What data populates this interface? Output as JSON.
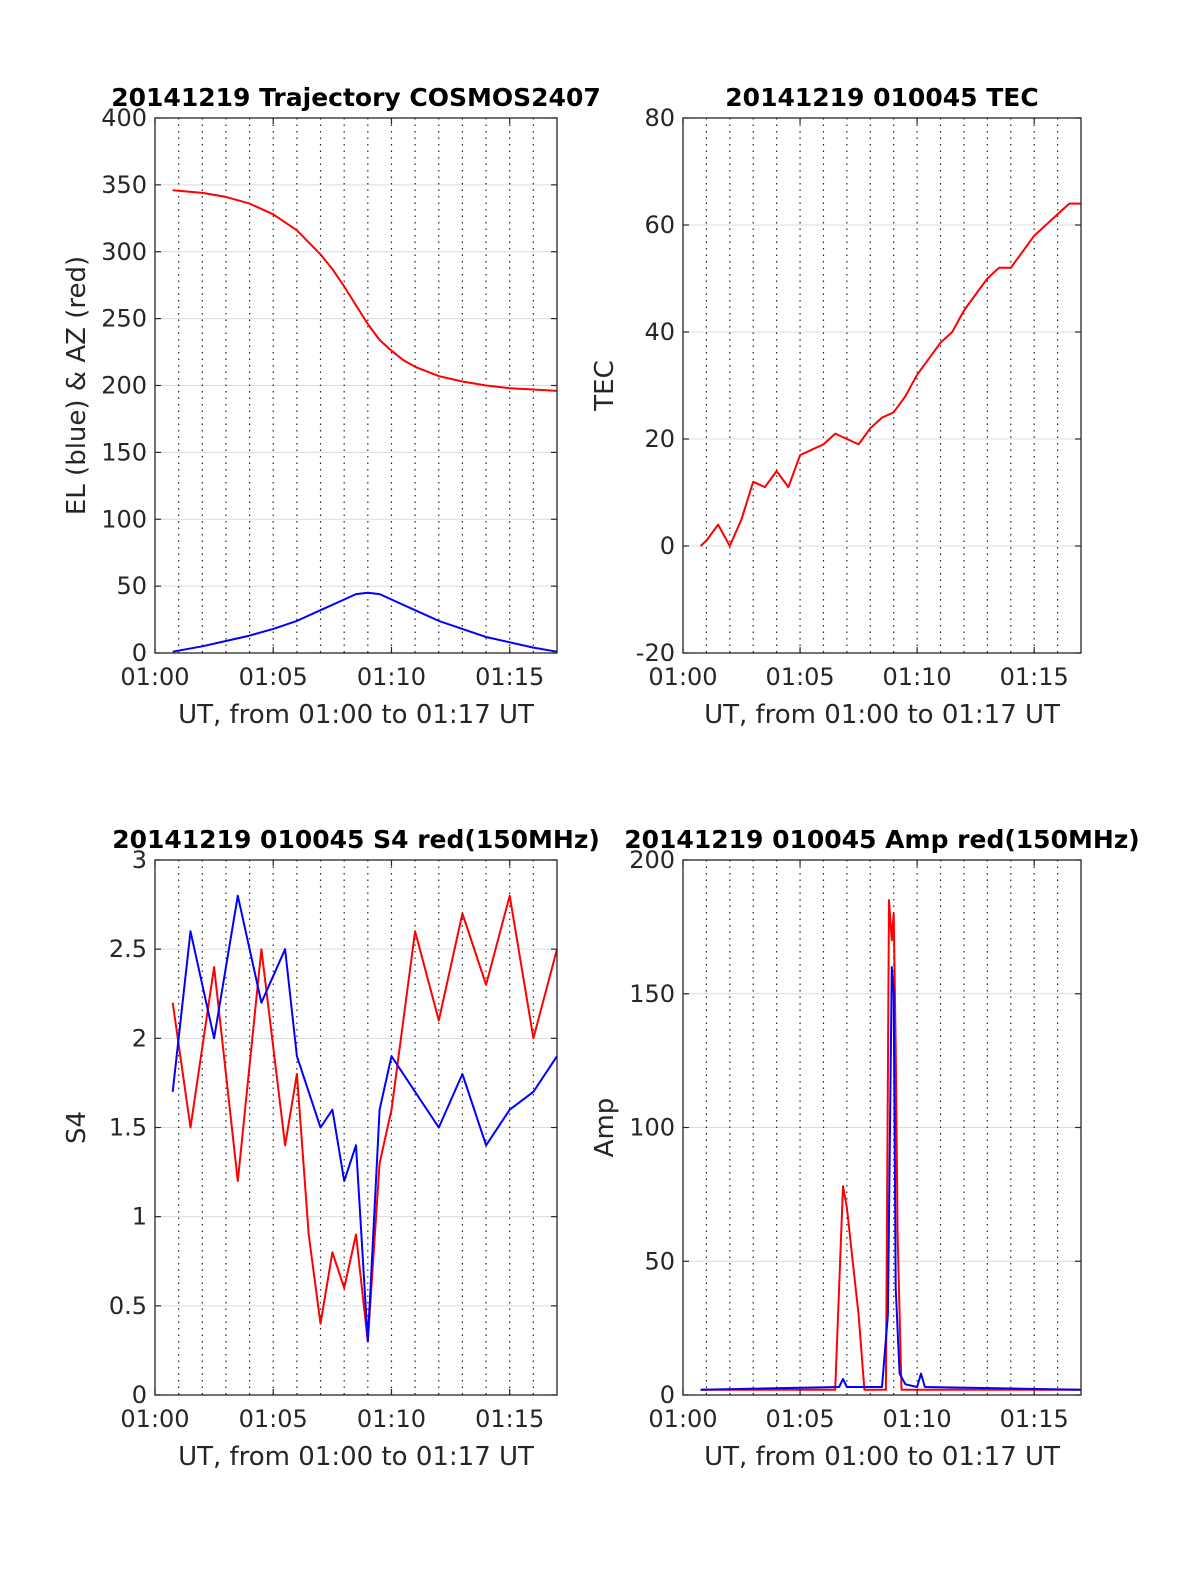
{
  "chart_data": [
    {
      "type": "line",
      "title": "20141219 Trajectory COSMOS2407",
      "xlabel": "UT, from 01:00 to 01:17 UT",
      "ylabel": "EL (blue) & AZ (red)",
      "xlim": [
        "01:00",
        "01:17"
      ],
      "ylim": [
        0,
        400
      ],
      "xticks": [
        "01:00",
        "01:05",
        "01:10",
        "01:15"
      ],
      "yticks": [
        "0",
        "50",
        "100",
        "150",
        "200",
        "250",
        "300",
        "350",
        "400"
      ],
      "grid": true,
      "series": [
        {
          "color": "#ff0000",
          "x": [
            "01:00:45",
            "01:02:00",
            "01:03:00",
            "01:04:00",
            "01:05:00",
            "01:06:00",
            "01:07:00",
            "01:07:30",
            "01:08:00",
            "01:08:30",
            "01:09:00",
            "01:09:30",
            "01:10:00",
            "01:10:30",
            "01:11:00",
            "01:12:00",
            "01:13:00",
            "01:14:00",
            "01:15:00",
            "01:16:00",
            "01:17:00"
          ],
          "values": [
            346,
            344,
            341,
            336,
            328,
            316,
            298,
            287,
            274,
            260,
            246,
            234,
            226,
            219,
            214,
            207,
            203,
            200,
            198,
            197,
            196
          ]
        },
        {
          "color": "#0000ff",
          "x": [
            "01:00:45",
            "01:02:00",
            "01:03:00",
            "01:04:00",
            "01:05:00",
            "01:06:00",
            "01:07:00",
            "01:08:00",
            "01:08:30",
            "01:09:00",
            "01:09:30",
            "01:10:00",
            "01:11:00",
            "01:12:00",
            "01:13:00",
            "01:14:00",
            "01:15:00",
            "01:16:00",
            "01:17:00"
          ],
          "values": [
            1,
            5,
            9,
            13,
            18,
            24,
            32,
            40,
            44,
            45,
            44,
            40,
            32,
            24,
            18,
            12,
            8,
            4,
            1
          ]
        }
      ]
    },
    {
      "type": "line",
      "title": "20141219 010045 TEC",
      "xlabel": "UT, from 01:00 to 01:17 UT",
      "ylabel": "TEC",
      "xlim": [
        "01:00",
        "01:17"
      ],
      "ylim": [
        -20,
        80
      ],
      "xticks": [
        "01:00",
        "01:05",
        "01:10",
        "01:15"
      ],
      "yticks": [
        "-20",
        "0",
        "20",
        "40",
        "60",
        "80"
      ],
      "grid": true,
      "series": [
        {
          "color": "#ff0000",
          "x": [
            "01:00:45",
            "01:01:00",
            "01:01:30",
            "01:02:00",
            "01:02:30",
            "01:03:00",
            "01:03:30",
            "01:04:00",
            "01:04:30",
            "01:05:00",
            "01:05:30",
            "01:06:00",
            "01:06:30",
            "01:07:00",
            "01:07:30",
            "01:08:00",
            "01:08:30",
            "01:09:00",
            "01:09:30",
            "01:10:00",
            "01:10:30",
            "01:11:00",
            "01:11:30",
            "01:12:00",
            "01:12:30",
            "01:13:00",
            "01:13:30",
            "01:14:00",
            "01:14:30",
            "01:15:00",
            "01:15:30",
            "01:16:00",
            "01:16:30",
            "01:17:00"
          ],
          "values": [
            0,
            1,
            4,
            0,
            5,
            12,
            11,
            14,
            11,
            17,
            18,
            19,
            21,
            20,
            19,
            22,
            24,
            25,
            28,
            32,
            35,
            38,
            40,
            44,
            47,
            50,
            52,
            52,
            55,
            58,
            60,
            62,
            64,
            64
          ]
        }
      ]
    },
    {
      "type": "line",
      "title": "20141219 010045 S4 red(150MHz)",
      "xlabel": "UT, from 01:00 to 01:17 UT",
      "ylabel": "S4",
      "xlim": [
        "01:00",
        "01:17"
      ],
      "ylim": [
        0,
        3
      ],
      "xticks": [
        "01:00",
        "01:05",
        "01:10",
        "01:15"
      ],
      "yticks": [
        "0",
        "0.5",
        "1",
        "1.5",
        "2",
        "2.5",
        "3"
      ],
      "grid": true,
      "series": [
        {
          "color": "#ff0000",
          "x": [
            "01:00:45",
            "01:01:30",
            "01:02:30",
            "01:03:30",
            "01:04:30",
            "01:05:30",
            "01:06:00",
            "01:06:30",
            "01:07:00",
            "01:07:30",
            "01:08:00",
            "01:08:30",
            "01:09:00",
            "01:09:30",
            "01:10:00",
            "01:11:00",
            "01:12:00",
            "01:13:00",
            "01:14:00",
            "01:15:00",
            "01:16:00",
            "01:17:00"
          ],
          "values": [
            2.2,
            1.5,
            2.4,
            1.2,
            2.5,
            1.4,
            1.8,
            0.9,
            0.4,
            0.8,
            0.6,
            0.9,
            0.3,
            1.3,
            1.6,
            2.6,
            2.1,
            2.7,
            2.3,
            2.8,
            2.0,
            2.5
          ]
        },
        {
          "color": "#0000ff",
          "x": [
            "01:00:45",
            "01:01:30",
            "01:02:30",
            "01:03:30",
            "01:04:30",
            "01:05:30",
            "01:06:00",
            "01:06:30",
            "01:07:00",
            "01:07:30",
            "01:08:00",
            "01:08:30",
            "01:09:00",
            "01:09:30",
            "01:10:00",
            "01:11:00",
            "01:12:00",
            "01:13:00",
            "01:14:00",
            "01:15:00",
            "01:16:00",
            "01:17:00"
          ],
          "values": [
            1.7,
            2.6,
            2.0,
            2.8,
            2.2,
            2.5,
            1.9,
            1.7,
            1.5,
            1.6,
            1.2,
            1.4,
            0.3,
            1.6,
            1.9,
            1.7,
            1.5,
            1.8,
            1.4,
            1.6,
            1.7,
            1.9
          ]
        }
      ]
    },
    {
      "type": "line",
      "title": "20141219 010045 Amp red(150MHz)",
      "xlabel": "UT, from 01:00 to 01:17 UT",
      "ylabel": "Amp",
      "xlim": [
        "01:00",
        "01:17"
      ],
      "ylim": [
        0,
        200
      ],
      "xticks": [
        "01:00",
        "01:05",
        "01:10",
        "01:15"
      ],
      "yticks": [
        "0",
        "50",
        "100",
        "150",
        "200"
      ],
      "grid": true,
      "series": [
        {
          "color": "#ff0000",
          "x": [
            "01:00:45",
            "01:06:30",
            "01:06:50",
            "01:07:00",
            "01:07:15",
            "01:07:30",
            "01:07:45",
            "01:08:00",
            "01:08:40",
            "01:08:48",
            "01:08:55",
            "01:09:00",
            "01:09:05",
            "01:09:10",
            "01:09:20",
            "01:17:00"
          ],
          "values": [
            2,
            2,
            78,
            70,
            50,
            30,
            2,
            2,
            2,
            185,
            170,
            180,
            130,
            60,
            2,
            2
          ]
        },
        {
          "color": "#0000ff",
          "x": [
            "01:00:45",
            "01:06:40",
            "01:06:50",
            "01:07:00",
            "01:08:30",
            "01:08:45",
            "01:08:55",
            "01:09:00",
            "01:09:05",
            "01:09:15",
            "01:09:30",
            "01:10:00",
            "01:10:10",
            "01:10:20",
            "01:17:00"
          ],
          "values": [
            2,
            3,
            6,
            3,
            3,
            30,
            160,
            150,
            40,
            8,
            4,
            3,
            8,
            3,
            2
          ]
        }
      ]
    }
  ]
}
